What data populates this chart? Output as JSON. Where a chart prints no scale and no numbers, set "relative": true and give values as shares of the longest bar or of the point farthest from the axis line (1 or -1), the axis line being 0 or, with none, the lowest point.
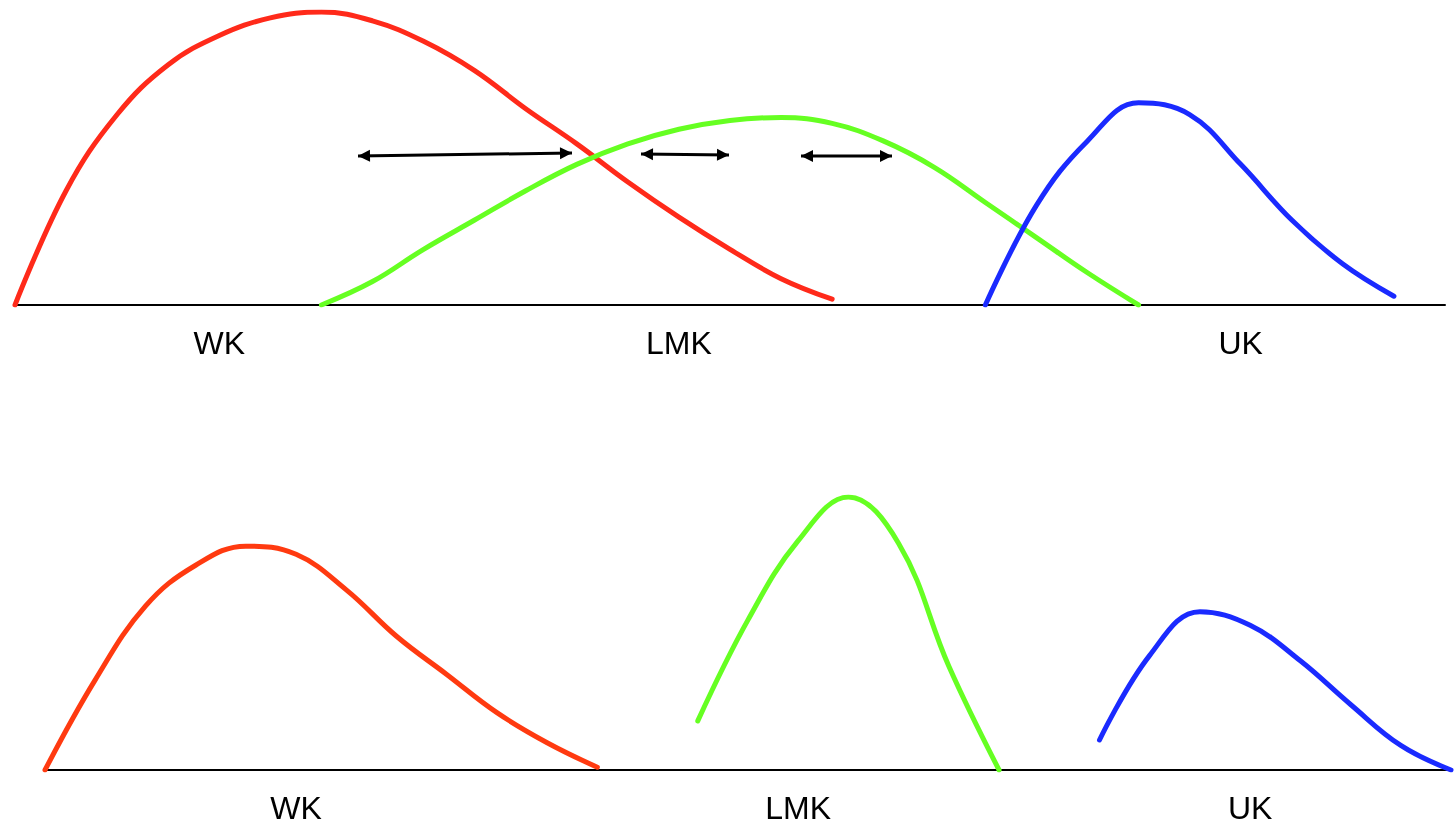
{
  "chart_data": [
    {
      "type": "line",
      "relative": true,
      "marker": "none",
      "line_style": "solid",
      "categories": [
        null,
        null,
        null,
        null,
        "WK",
        null,
        null,
        null,
        null,
        null,
        null,
        null,
        null,
        "LMK",
        null,
        null,
        null,
        null,
        null,
        null,
        null,
        null,
        null,
        null,
        "UK",
        null,
        null,
        null,
        null
      ],
      "series": [
        {
          "color": "#ff2a1a",
          "values": [
            0,
            0.39,
            0.65,
            0.82,
            0.92,
            0.98,
            1.0,
            0.97,
            0.9,
            0.8,
            0.67,
            0.55,
            0.42,
            0.3,
            0.19,
            0.09,
            0.02,
            null,
            null,
            null,
            null,
            null,
            null,
            null,
            null,
            null,
            null,
            null,
            null
          ]
        },
        {
          "color": "#66ff22",
          "values": [
            null,
            null,
            null,
            null,
            null,
            null,
            0,
            0.08,
            0.19,
            0.29,
            0.39,
            0.48,
            0.55,
            0.6,
            0.63,
            0.64,
            0.62,
            0.56,
            0.47,
            0.35,
            0.23,
            0.11,
            0,
            null,
            null,
            null,
            null,
            null,
            null
          ]
        },
        {
          "color": "#1a2aff",
          "values": [
            null,
            null,
            null,
            null,
            null,
            null,
            null,
            null,
            null,
            null,
            null,
            null,
            null,
            null,
            null,
            null,
            null,
            null,
            null,
            0,
            0.34,
            0.56,
            0.69,
            0.65,
            0.48,
            0.29,
            0.14,
            0.03,
            null
          ]
        }
      ]
    },
    {
      "type": "line",
      "relative": true,
      "marker": "none",
      "line_style": "solid",
      "categories": [
        null,
        null,
        null,
        null,
        null,
        "WK",
        null,
        null,
        null,
        null,
        null,
        null,
        null,
        null,
        null,
        "LMK",
        null,
        null,
        null,
        null,
        null,
        null,
        null,
        null,
        "UK",
        null,
        null,
        null,
        null
      ],
      "series": [
        {
          "color": "#ff3a10",
          "values": [
            0,
            0.33,
            0.6,
            0.75,
            0.82,
            0.79,
            0.66,
            0.49,
            0.35,
            0.21,
            0.1,
            0.01,
            null,
            null,
            null,
            null,
            null,
            null,
            null,
            null,
            null,
            null,
            null,
            null,
            null,
            null,
            null,
            null,
            null
          ]
        },
        {
          "color": "#66ff22",
          "values": [
            null,
            null,
            null,
            null,
            null,
            null,
            null,
            null,
            null,
            null,
            null,
            null,
            null,
            0.18,
            0.55,
            0.84,
            1.0,
            0.83,
            0.38,
            0,
            null,
            null,
            null,
            null,
            null,
            null,
            null,
            null,
            null
          ]
        },
        {
          "color": "#1a2aff",
          "values": [
            null,
            null,
            null,
            null,
            null,
            null,
            null,
            null,
            null,
            null,
            null,
            null,
            null,
            null,
            null,
            null,
            null,
            null,
            null,
            null,
            null,
            0.11,
            0.42,
            0.58,
            0.53,
            0.4,
            0.24,
            0.09,
            0
          ]
        }
      ]
    }
  ]
}
